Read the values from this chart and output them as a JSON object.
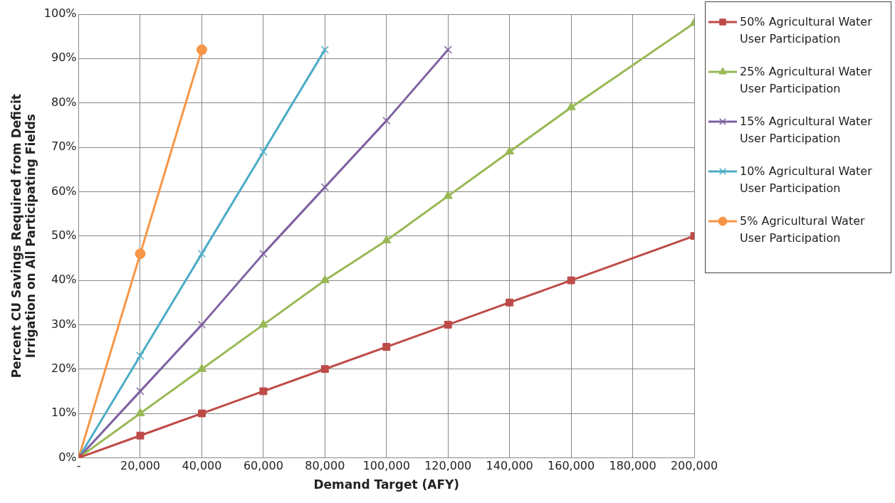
{
  "chart_data": {
    "type": "line",
    "xlabel": "Demand Target (AFY)",
    "ylabel": "Percent CU Savings Required from Deficit Irrigation on All Participating Fields",
    "xlim": [
      0,
      200000
    ],
    "xticks": [
      {
        "value": 0,
        "label": "-"
      },
      {
        "value": 20000,
        "label": "20,000"
      },
      {
        "value": 40000,
        "label": "40,000"
      },
      {
        "value": 60000,
        "label": "60,000"
      },
      {
        "value": 80000,
        "label": "80,000"
      },
      {
        "value": 100000,
        "label": "100,000"
      },
      {
        "value": 120000,
        "label": "120,000"
      },
      {
        "value": 140000,
        "label": "140,000"
      },
      {
        "value": 160000,
        "label": "160,000"
      },
      {
        "value": 180000,
        "label": "180,000"
      },
      {
        "value": 200000,
        "label": "200,000"
      }
    ],
    "ylim": [
      0,
      100
    ],
    "yticks": [
      {
        "value": 0,
        "label": "0%"
      },
      {
        "value": 10,
        "label": "10%"
      },
      {
        "value": 20,
        "label": "20%"
      },
      {
        "value": 30,
        "label": "30%"
      },
      {
        "value": 40,
        "label": "40%"
      },
      {
        "value": 50,
        "label": "50%"
      },
      {
        "value": 60,
        "label": "60%"
      },
      {
        "value": 70,
        "label": "70%"
      },
      {
        "value": 80,
        "label": "80%"
      },
      {
        "value": 90,
        "label": "90%"
      },
      {
        "value": 100,
        "label": "100%"
      }
    ],
    "grid": true,
    "legend": "right",
    "line_style": "solid",
    "series": [
      {
        "name": "50% Agricultural Water User Participation",
        "color": "#be4b48",
        "marker": "square",
        "x": [
          0,
          20000,
          40000,
          60000,
          80000,
          100000,
          120000,
          140000,
          160000,
          200000
        ],
        "values": [
          0,
          5,
          10,
          15,
          20,
          25,
          30,
          35,
          40,
          50
        ]
      },
      {
        "name": "25% Agricultural Water User Participation",
        "color": "#98b954",
        "marker": "triangle",
        "x": [
          0,
          20000,
          40000,
          60000,
          80000,
          100000,
          120000,
          140000,
          160000,
          200000
        ],
        "values": [
          0,
          10,
          20,
          30,
          40,
          49,
          59,
          69,
          79,
          98
        ]
      },
      {
        "name": "15% Agricultural Water User Participation",
        "color": "#7d60a0",
        "marker": "cross",
        "x": [
          0,
          20000,
          40000,
          60000,
          80000,
          100000,
          120000
        ],
        "values": [
          0,
          15,
          30,
          46,
          61,
          76,
          92
        ]
      },
      {
        "name": "10% Agricultural Water User Participation",
        "color": "#4bacc6",
        "marker": "cross",
        "x": [
          0,
          20000,
          40000,
          60000,
          80000
        ],
        "values": [
          0,
          23,
          46,
          69,
          92
        ]
      },
      {
        "name": "5% Agricultural Water User Participation",
        "color": "#f79646",
        "marker": "circle",
        "x": [
          0,
          20000,
          40000
        ],
        "values": [
          0,
          46,
          92
        ]
      }
    ]
  }
}
